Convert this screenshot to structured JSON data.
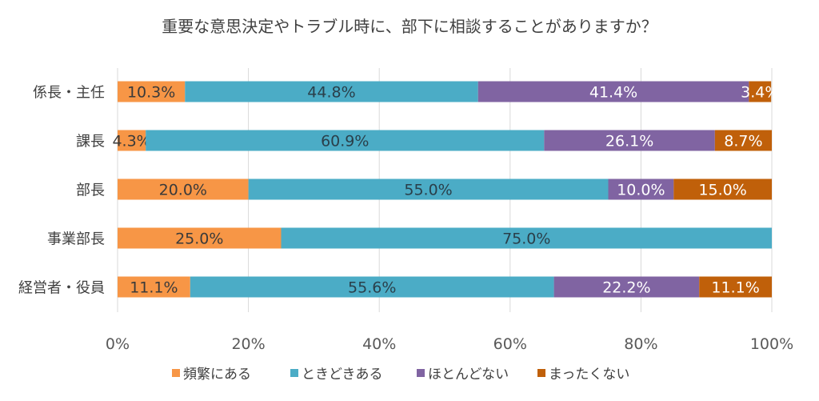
{
  "chart_data": {
    "type": "bar",
    "orientation": "horizontal",
    "stacked": true,
    "title": "重要な意思決定やトラブル時に、部下に相談することがありますか？",
    "categories": [
      "係長・主任",
      "課長",
      "部長",
      "事業部長",
      "経営者・役員"
    ],
    "series": [
      {
        "name": "頻繁にある",
        "color": "#F79646",
        "label_color": "#3a3a3a",
        "values": [
          10.3,
          4.3,
          20.0,
          25.0,
          11.1
        ]
      },
      {
        "name": "ときどきある",
        "color": "#4BACC6",
        "label_color": "#2a3f4a",
        "values": [
          44.8,
          60.9,
          55.0,
          75.0,
          55.6
        ]
      },
      {
        "name": "ほとんどない",
        "color": "#8064A2",
        "label_color": "#ffffff",
        "values": [
          41.4,
          26.1,
          10.0,
          0,
          22.2
        ]
      },
      {
        "name": "まったくない",
        "color": "#C0600A",
        "label_color": "#ffffff",
        "values": [
          3.4,
          8.7,
          15.0,
          0,
          11.1
        ]
      }
    ],
    "xlim": [
      0,
      100
    ],
    "x_ticks": [
      "0%",
      "20%",
      "40%",
      "60%",
      "80%",
      "100%"
    ],
    "grid": true,
    "legend_position": "bottom"
  }
}
